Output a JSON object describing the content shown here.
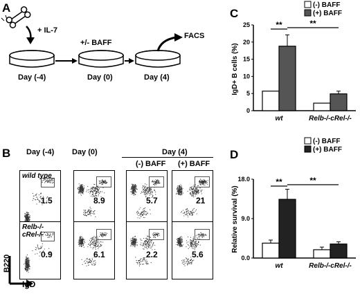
{
  "panelA": {
    "label": "A",
    "il7": "+ IL-7",
    "baff": "+/- BAFF",
    "facs": "FACS",
    "days": [
      "Day (-4)",
      "Day (0)",
      "Day (4)"
    ]
  },
  "panelB": {
    "label": "B",
    "col_headers": [
      "Day (-4)",
      "Day (0)",
      "Day (4)"
    ],
    "sub_headers": [
      "(-) BAFF",
      "(+) BAFF"
    ],
    "row_labels": [
      "wild type",
      "Relb-/-cRel-/-"
    ],
    "percentages": [
      [
        "1.5",
        "8.9",
        "5.7",
        "21"
      ],
      [
        "0.9",
        "6.1",
        "2.2",
        "5.6"
      ]
    ],
    "yaxis": "B220",
    "xaxis": "IgD"
  },
  "chart_data": [
    {
      "panel": "C",
      "type": "bar",
      "categories": [
        "wt",
        "Relb-/-cRel-/-"
      ],
      "series": [
        {
          "name": "(-) BAFF",
          "color": "#ffffff",
          "values": [
            5.7,
            2.2
          ]
        },
        {
          "name": "(+) BAFF",
          "color": "#555555",
          "values": [
            18.8,
            4.9
          ]
        }
      ],
      "errors": [
        [
          0,
          0
        ],
        [
          3.3,
          0.8
        ]
      ],
      "ylabel": "IgD+ B cells (%)",
      "ylim": [
        0,
        25
      ],
      "yticks": [
        "0",
        "5",
        "10",
        "15",
        "20",
        "25"
      ],
      "significance": [
        "**",
        "**"
      ],
      "legend": "top-right"
    },
    {
      "panel": "D",
      "type": "bar",
      "categories": [
        "wt",
        "Relb-/-cRel-/-"
      ],
      "series": [
        {
          "name": "(-) BAFF",
          "color": "#ffffff",
          "values": [
            3.4,
            1.9
          ]
        },
        {
          "name": "(+) BAFF",
          "color": "#222222",
          "values": [
            13.4,
            3.2
          ]
        }
      ],
      "errors": [
        [
          0.7,
          0.6
        ],
        [
          2.3,
          0.5
        ]
      ],
      "ylabel": "Relative survival (%)",
      "ylim": [
        0,
        18
      ],
      "yticks": [
        "0.0",
        "9.0",
        "18.0"
      ],
      "significance": [
        "**",
        "**"
      ],
      "legend": "top-right"
    }
  ]
}
